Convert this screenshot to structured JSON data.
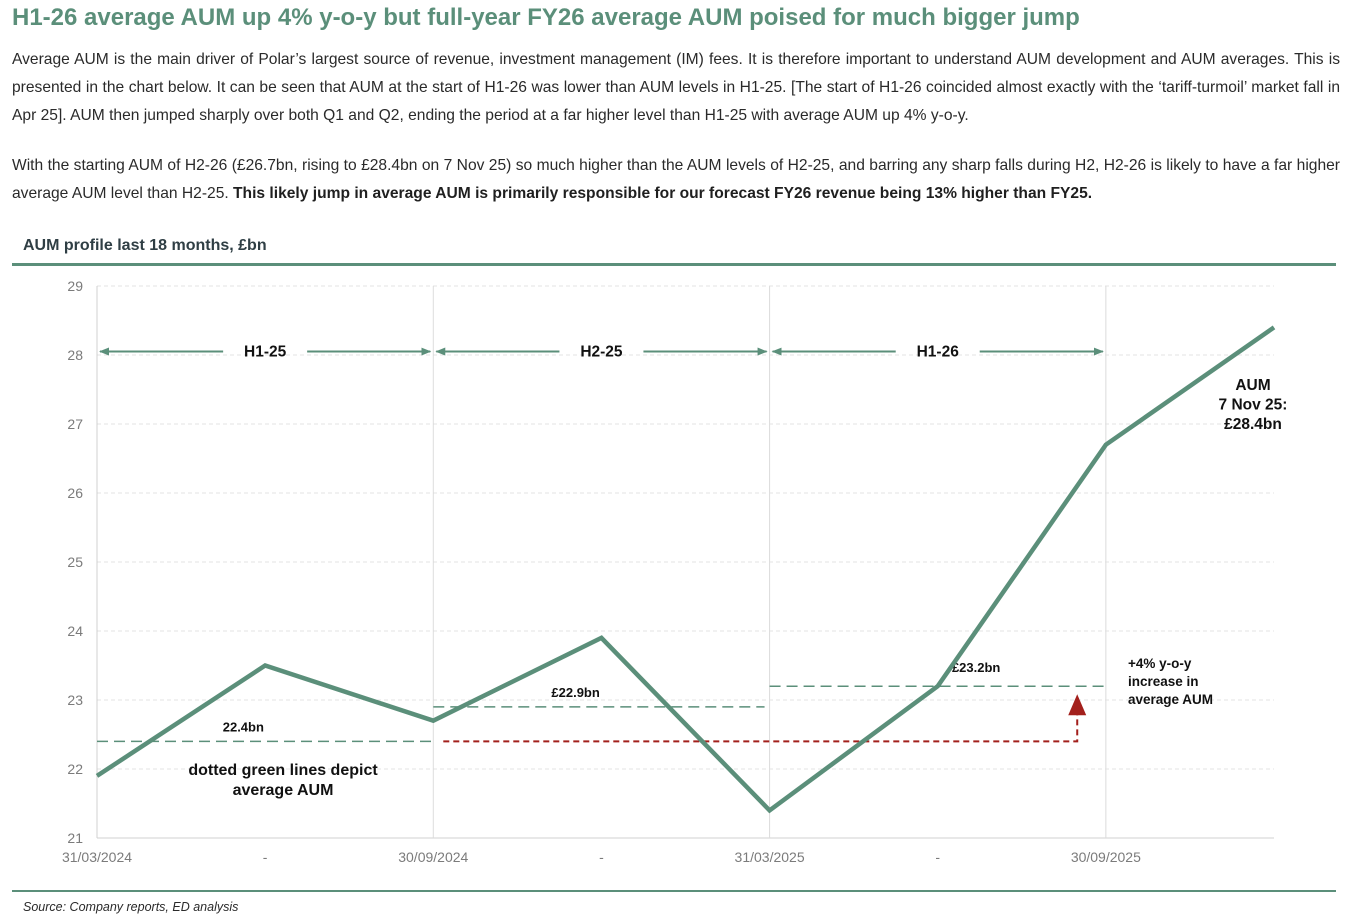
{
  "heading": "H1-26 average AUM up 4% y-o-y but full-year FY26 average AUM poised for much bigger jump",
  "paragraph1": "Average AUM is the main driver of Polar’s largest source of revenue, investment management (IM) fees. It is therefore important to understand AUM development and AUM averages. This is presented in the chart below. It can be seen that AUM at the start of H1-26 was lower than AUM levels in H1-25. [The start of H1-26 coincided almost exactly with the ‘tariff-turmoil’ market fall in Apr 25]. AUM then jumped sharply over both Q1 and Q2, ending the period at a far higher level than H1-25 with average AUM up 4% y-o-y.",
  "paragraph2_normal": "With the starting AUM of H2-26 (£26.7bn, rising to £28.4bn on 7 Nov 25) so much higher than the AUM levels of H2-25, and barring any sharp falls during H2, H2-26 is likely to have a far higher average AUM level than H2-25. ",
  "paragraph2_bold": "This likely jump in average AUM is primarily responsible for our forecast FY26 revenue being 13% higher than FY25.",
  "source": "Source: Company reports, ED analysis",
  "colors": {
    "brand": "#5b8f7a",
    "line": "#5b8f7a",
    "arrow": "#a3201c",
    "grid": "#d9d9d9"
  },
  "chart_data": {
    "type": "line",
    "title": "AUM profile last 18 months, £bn",
    "xlabel": "",
    "ylabel": "",
    "ylim": [
      21,
      29
    ],
    "yticks": [
      21,
      22,
      23,
      24,
      25,
      26,
      27,
      28,
      29
    ],
    "xlim": [
      0,
      7
    ],
    "xtick_labels": [
      "31/03/2024",
      "-",
      "30/09/2024",
      "-",
      "31/03/2025",
      "-",
      "30/09/2025"
    ],
    "series": [
      {
        "name": "AUM",
        "x": [
          0,
          1,
          2,
          3,
          4,
          5,
          6,
          7
        ],
        "values": [
          21.9,
          23.5,
          22.7,
          23.9,
          21.4,
          23.2,
          26.7,
          28.4
        ]
      }
    ],
    "averages": [
      {
        "period": "H1-25",
        "x_start": 0,
        "x_end": 2,
        "value": 22.4,
        "label": "22.4bn"
      },
      {
        "period": "H2-25",
        "x_start": 2,
        "x_end": 4,
        "value": 22.9,
        "label": "£22.9bn"
      },
      {
        "period": "H1-26",
        "x_start": 4,
        "x_end": 6,
        "value": 23.2,
        "label": "£23.2bn"
      }
    ],
    "periods": [
      {
        "label": "H1-25",
        "x_start": 0,
        "x_end": 2
      },
      {
        "label": "H2-25",
        "x_start": 2,
        "x_end": 4
      },
      {
        "label": "H1-26",
        "x_start": 4,
        "x_end": 6
      }
    ],
    "annotations": {
      "latest": [
        "AUM",
        "7 Nov 25:",
        "£28.4bn"
      ],
      "increase": [
        "+4% y-o-y",
        "increase in",
        "average AUM"
      ],
      "legend_note": [
        "dotted green lines depict",
        "average AUM"
      ]
    }
  }
}
